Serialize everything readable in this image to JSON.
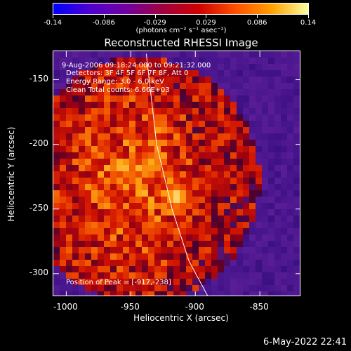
{
  "colorbar": {
    "ticks": [
      "-0.14",
      "-0.086",
      "-0.029",
      "0.029",
      "0.086",
      "0.14"
    ],
    "units": "(photons cm⁻² s⁻¹ asec⁻²)",
    "colors": [
      "#0000ff",
      "#5000d0",
      "#7000a0",
      "#a00040",
      "#d00000",
      "#ff5000",
      "#ffa000",
      "#ffffa0"
    ]
  },
  "chart_data": {
    "type": "heatmap",
    "title": "Reconstructed RHESSI Image",
    "xlabel": "Heliocentric X (arcsec)",
    "ylabel": "Heliocentric Y (arcsec)",
    "xlim": [
      -1010,
      -818
    ],
    "ylim": [
      -318,
      -128
    ],
    "xticks": [
      "-1000",
      "-950",
      "-900",
      "-850"
    ],
    "xtick_values": [
      -1000,
      -950,
      -900,
      -850
    ],
    "yticks": [
      "-150",
      "-200",
      "-250",
      "-300"
    ],
    "ytick_values": [
      -150,
      -200,
      -250,
      -300
    ],
    "colorbar_range": [
      -0.14,
      0.14
    ],
    "peak_position": [
      -917,
      -238
    ],
    "limb_curve": [
      [
        -938,
        -130
      ],
      [
        -930,
        -200
      ],
      [
        -918,
        -250
      ],
      [
        -905,
        -290
      ],
      [
        -890,
        -318
      ]
    ],
    "annotations": [
      "9-Aug-2006 09:18:24.000 to 09:21:32.000",
      "Detectors: 3F 4F 5F 6F 7F 8F, Att 0",
      "Energy Range: 3.0 - 6.0 keV",
      "Clean    Total counts: 6.66E+03"
    ],
    "peak_label": "Position of Peak = [-917,-238]"
  },
  "footer": {
    "date": "6-May-2022 22:41"
  }
}
